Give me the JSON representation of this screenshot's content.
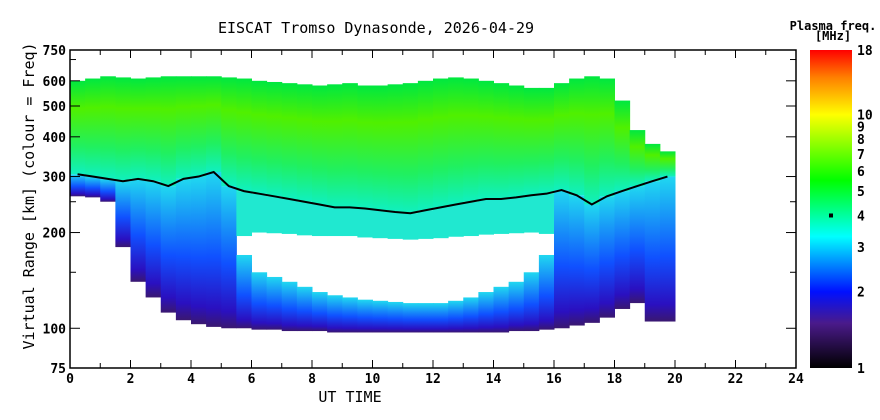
{
  "chart_data": {
    "type": "heatmap",
    "title": "EISCAT Tromso Dynasonde, 2026-04-29",
    "xlabel": "UT TIME",
    "ylabel": "Virtual Range [km] (colour = Freq)",
    "xlim": [
      0,
      24
    ],
    "ylim": [
      75,
      750
    ],
    "yscale": "log",
    "xticks": [
      0,
      2,
      4,
      6,
      8,
      10,
      12,
      14,
      16,
      18,
      20,
      22,
      24
    ],
    "yticks": [
      75,
      100,
      200,
      300,
      400,
      500,
      600,
      750
    ],
    "yminor": [
      150,
      250,
      700
    ],
    "colorbar": {
      "title": "Plasma freq.",
      "units": "[MHz]",
      "range": [
        1,
        18
      ],
      "scale": "log",
      "ticks": [
        1,
        2,
        3,
        4,
        5,
        6,
        7,
        8,
        9,
        10,
        18
      ],
      "marker_value": 4,
      "stops": [
        {
          "f": 1,
          "color": "#000000"
        },
        {
          "f": 1.5,
          "color": "#4a1a8a"
        },
        {
          "f": 2,
          "color": "#0010ff"
        },
        {
          "f": 3.3,
          "color": "#00ffff"
        },
        {
          "f": 5.5,
          "color": "#00ff00"
        },
        {
          "f": 10,
          "color": "#ffff00"
        },
        {
          "f": 14,
          "color": "#ff8000"
        },
        {
          "f": 18,
          "color": "#ff0000"
        }
      ]
    },
    "time_h": [
      0,
      0.5,
      1,
      1.5,
      2,
      2.5,
      3,
      3.5,
      4,
      4.5,
      5,
      5.5,
      6,
      6.5,
      7,
      7.5,
      8,
      8.5,
      9,
      9.5,
      10,
      10.5,
      11,
      11.5,
      12,
      12.5,
      13,
      13.5,
      14,
      14.5,
      15,
      15.5,
      16,
      16.5,
      17,
      17.5,
      18,
      18.5,
      19,
      19.5
    ],
    "echo_top_km": [
      600,
      610,
      620,
      615,
      610,
      615,
      620,
      620,
      620,
      620,
      615,
      610,
      600,
      595,
      590,
      585,
      580,
      585,
      590,
      580,
      580,
      585,
      590,
      600,
      610,
      615,
      610,
      600,
      590,
      580,
      570,
      570,
      590,
      610,
      620,
      610,
      520,
      420,
      380,
      360
    ],
    "f_trace_km": [
      305,
      300,
      295,
      290,
      295,
      290,
      280,
      295,
      300,
      310,
      280,
      270,
      265,
      260,
      255,
      250,
      245,
      240,
      240,
      238,
      235,
      232,
      230,
      235,
      240,
      245,
      250,
      255,
      255,
      258,
      262,
      265,
      272,
      262,
      245,
      260,
      270,
      280,
      290,
      300
    ],
    "echo_bottom_km": [
      260,
      258,
      250,
      180,
      140,
      125,
      112,
      106,
      103,
      101,
      100,
      100,
      99,
      99,
      98,
      98,
      98,
      97,
      97,
      97,
      97,
      97,
      97,
      97,
      97,
      97,
      97,
      97,
      97,
      98,
      98,
      99,
      100,
      102,
      104,
      108,
      115,
      120,
      105,
      105
    ],
    "gap_low_km": [
      null,
      null,
      null,
      null,
      null,
      null,
      null,
      null,
      null,
      null,
      null,
      170,
      150,
      145,
      140,
      135,
      130,
      127,
      125,
      123,
      122,
      121,
      120,
      120,
      120,
      122,
      125,
      130,
      135,
      140,
      150,
      170,
      null,
      null,
      null,
      null,
      null,
      null,
      null,
      null
    ],
    "gap_high_km": [
      null,
      null,
      null,
      null,
      null,
      null,
      null,
      null,
      null,
      null,
      null,
      195,
      200,
      199,
      198,
      196,
      195,
      195,
      195,
      193,
      192,
      191,
      190,
      191,
      192,
      194,
      195,
      197,
      198,
      199,
      200,
      198,
      null,
      null,
      null,
      null,
      null,
      null,
      null,
      null
    ]
  }
}
